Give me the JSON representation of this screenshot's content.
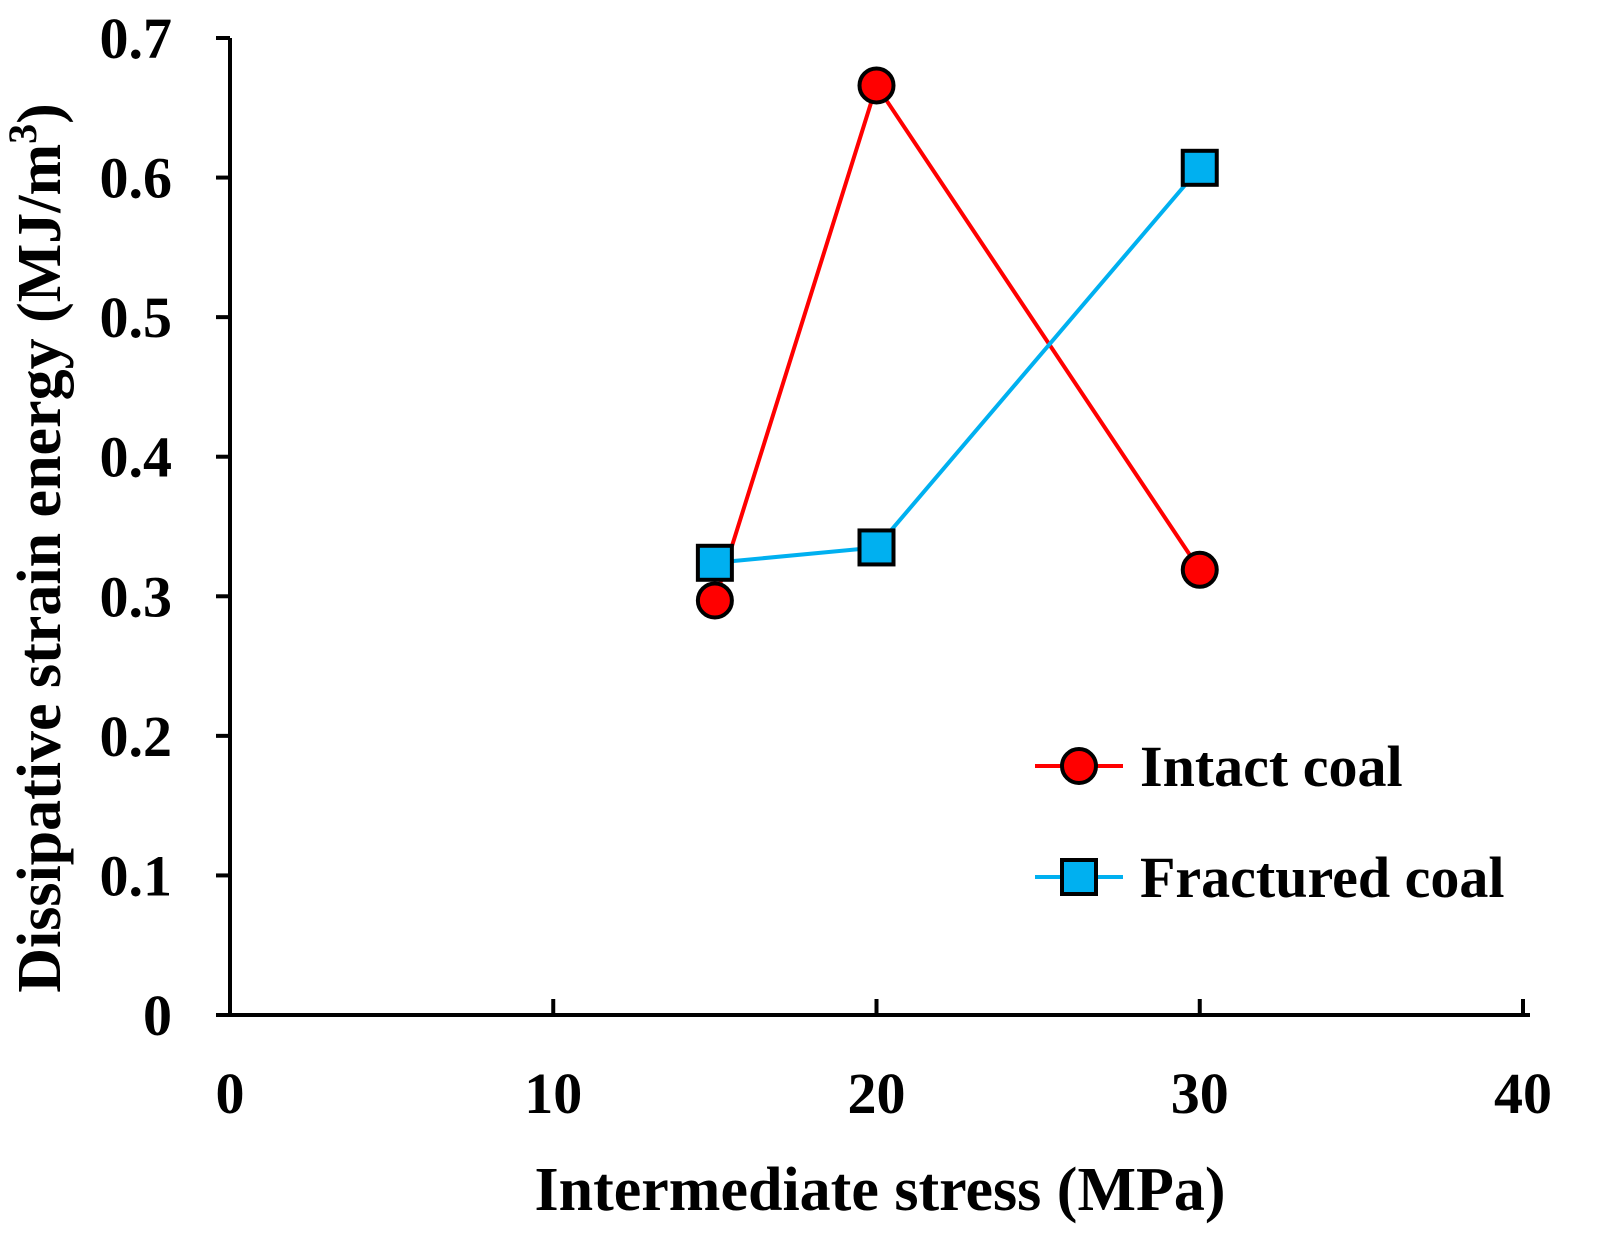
{
  "chart_data": {
    "type": "line",
    "title": "",
    "xlabel": "Intermediate stress (MPa)",
    "ylabel": "Dissipative strain energy (MJ/m",
    "ylabel_sup": "3",
    "ylabel_end": ")",
    "xlim": [
      0,
      40
    ],
    "ylim": [
      0,
      0.7
    ],
    "xticks": [
      0,
      10,
      20,
      30,
      40
    ],
    "yticks": [
      0,
      0.1,
      0.2,
      0.3,
      0.4,
      0.5,
      0.6,
      0.7
    ],
    "xtick_labels": [
      "0",
      "10",
      "20",
      "30",
      "40"
    ],
    "ytick_labels": [
      "0",
      "0.1",
      "0.2",
      "0.3",
      "0.4",
      "0.5",
      "0.6",
      "0.7"
    ],
    "grid": false,
    "legend_position": "bottom-right",
    "series": [
      {
        "name": "Intact coal",
        "marker": "circle",
        "color": "#ff0000",
        "marker_fill": "#ff0000",
        "x": [
          15,
          20,
          30
        ],
        "y": [
          0.297,
          0.666,
          0.319
        ]
      },
      {
        "name": "Fractured coal",
        "marker": "square",
        "color": "#00b0f0",
        "marker_fill": "#00b0f0",
        "x": [
          15,
          20,
          30
        ],
        "y": [
          0.324,
          0.335,
          0.607
        ]
      }
    ]
  }
}
